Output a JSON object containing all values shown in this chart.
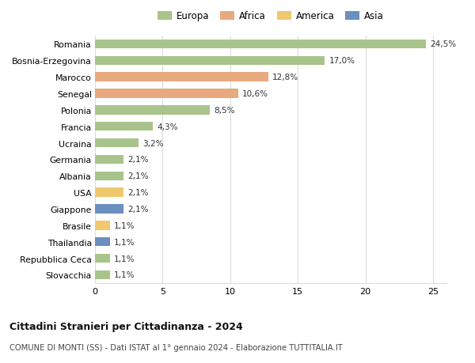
{
  "categories": [
    "Romania",
    "Bosnia-Erzegovina",
    "Marocco",
    "Senegal",
    "Polonia",
    "Francia",
    "Ucraina",
    "Germania",
    "Albania",
    "USA",
    "Giappone",
    "Brasile",
    "Thailandia",
    "Repubblica Ceca",
    "Slovacchia"
  ],
  "values": [
    24.5,
    17.0,
    12.8,
    10.6,
    8.5,
    4.3,
    3.2,
    2.1,
    2.1,
    2.1,
    2.1,
    1.1,
    1.1,
    1.1,
    1.1
  ],
  "labels": [
    "24,5%",
    "17,0%",
    "12,8%",
    "10,6%",
    "8,5%",
    "4,3%",
    "3,2%",
    "2,1%",
    "2,1%",
    "2,1%",
    "2,1%",
    "1,1%",
    "1,1%",
    "1,1%",
    "1,1%"
  ],
  "continents": [
    "Europa",
    "Europa",
    "Africa",
    "Africa",
    "Europa",
    "Europa",
    "Europa",
    "Europa",
    "Europa",
    "America",
    "Asia",
    "America",
    "Asia",
    "Europa",
    "Europa"
  ],
  "colors": {
    "Europa": "#a8c48a",
    "Africa": "#e8a97e",
    "America": "#f0c96e",
    "Asia": "#6b8fbf"
  },
  "legend_order": [
    "Europa",
    "Africa",
    "America",
    "Asia"
  ],
  "title": "Cittadini Stranieri per Cittadinanza - 2024",
  "subtitle": "COMUNE DI MONTI (SS) - Dati ISTAT al 1° gennaio 2024 - Elaborazione TUTTITALIA.IT",
  "xlim": [
    0,
    26
  ],
  "xticks": [
    0,
    5,
    10,
    15,
    20,
    25
  ],
  "bg_color": "#ffffff",
  "grid_color": "#dddddd",
  "bar_height": 0.55
}
